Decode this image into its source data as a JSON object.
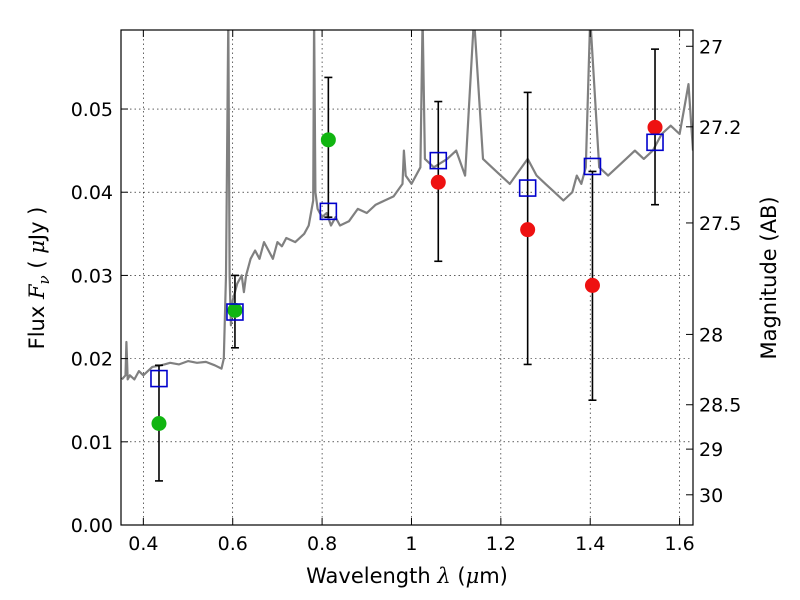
{
  "chart_data": {
    "type": "scatter",
    "xlabel": "Wavelength",
    "xlabel_symbol": "λ",
    "xlabel_unit_open": " (",
    "xlabel_unit_mu": "μ",
    "xlabel_unit_rest": "m)",
    "ylabel": "Flux",
    "ylabel_symbol": "F",
    "ylabel_sub": "ν",
    "ylabel_unit_open": "( ",
    "ylabel_unit_mu": "μ",
    "ylabel_unit_rest": "Jy )",
    "y2label": "Magnitude (AB)",
    "xlim": [
      0.35,
      1.63
    ],
    "ylim": [
      0,
      0.0595
    ],
    "grid": true,
    "x_ticks": [
      0.4,
      0.6,
      0.8,
      1.0,
      1.2,
      1.4,
      1.6
    ],
    "x_tick_labels": [
      "0.4",
      "0.6",
      "0.8",
      "1",
      "1.2",
      "1.4",
      "1.6"
    ],
    "y_ticks": [
      0.0,
      0.01,
      0.02,
      0.03,
      0.04,
      0.05
    ],
    "y_tick_labels": [
      "0.00",
      "0.01",
      "0.02",
      "0.03",
      "0.04",
      "0.05"
    ],
    "y2_ticks": [
      {
        "label": "27",
        "value": 27.0
      },
      {
        "label": "27.2",
        "value": 27.2
      },
      {
        "label": "27.5",
        "value": 27.5
      },
      {
        "label": "28",
        "value": 28.0
      },
      {
        "label": "28.5",
        "value": 28.5
      },
      {
        "label": "29",
        "value": 29.0
      },
      {
        "label": "30",
        "value": 30.0
      }
    ],
    "colors": {
      "model": "#808080",
      "observed_optical": "#11b511",
      "observed_nir": "#ee1111",
      "model_flux": "#0000cc",
      "errorbar": "#000000"
    },
    "model_spectrum": {
      "x": [
        0.352,
        0.36,
        0.362,
        0.365,
        0.37,
        0.38,
        0.39,
        0.4,
        0.42,
        0.44,
        0.46,
        0.48,
        0.5,
        0.52,
        0.54,
        0.56,
        0.575,
        0.58,
        0.585,
        0.59,
        0.593,
        0.596,
        0.6,
        0.61,
        0.62,
        0.625,
        0.63,
        0.64,
        0.65,
        0.66,
        0.67,
        0.68,
        0.69,
        0.7,
        0.71,
        0.72,
        0.74,
        0.76,
        0.77,
        0.78,
        0.782,
        0.785,
        0.79,
        0.8,
        0.81,
        0.82,
        0.83,
        0.84,
        0.86,
        0.88,
        0.9,
        0.92,
        0.94,
        0.96,
        0.98,
        0.983,
        0.987,
        1.0,
        1.02,
        1.025,
        1.03,
        1.05,
        1.08,
        1.1,
        1.12,
        1.14,
        1.16,
        1.18,
        1.2,
        1.22,
        1.24,
        1.26,
        1.28,
        1.3,
        1.32,
        1.34,
        1.36,
        1.37,
        1.38,
        1.39,
        1.4,
        1.42,
        1.44,
        1.46,
        1.48,
        1.5,
        1.52,
        1.54,
        1.56,
        1.58,
        1.6,
        1.61,
        1.62,
        1.63
      ],
      "y": [
        0.0175,
        0.018,
        0.022,
        0.0175,
        0.018,
        0.0175,
        0.0185,
        0.018,
        0.019,
        0.0192,
        0.0195,
        0.0193,
        0.0197,
        0.0195,
        0.0196,
        0.0192,
        0.0188,
        0.02,
        0.03,
        0.061,
        0.03,
        0.024,
        0.027,
        0.029,
        0.03,
        0.028,
        0.03,
        0.032,
        0.033,
        0.032,
        0.034,
        0.033,
        0.032,
        0.034,
        0.0335,
        0.0345,
        0.034,
        0.035,
        0.036,
        0.039,
        0.061,
        0.04,
        0.038,
        0.037,
        0.0375,
        0.036,
        0.037,
        0.036,
        0.0365,
        0.038,
        0.0375,
        0.0385,
        0.039,
        0.0395,
        0.041,
        0.045,
        0.042,
        0.041,
        0.043,
        0.061,
        0.044,
        0.043,
        0.044,
        0.045,
        0.042,
        0.061,
        0.044,
        0.043,
        0.042,
        0.041,
        0.0425,
        0.044,
        0.042,
        0.041,
        0.04,
        0.039,
        0.04,
        0.042,
        0.041,
        0.043,
        0.061,
        0.043,
        0.042,
        0.043,
        0.044,
        0.045,
        0.044,
        0.045,
        0.047,
        0.048,
        0.047,
        0.05,
        0.053,
        0.045
      ]
    },
    "observed_optical": [
      {
        "x": 0.435,
        "y": 0.0122,
        "yerr_low": 0.0053,
        "yerr_high": 0.0192
      },
      {
        "x": 0.605,
        "y": 0.0258,
        "yerr_low": 0.0213,
        "yerr_high": 0.03
      },
      {
        "x": 0.814,
        "y": 0.0463,
        "yerr_low": 0.037,
        "yerr_high": 0.0538
      }
    ],
    "observed_nir": [
      {
        "x": 1.06,
        "y": 0.0412,
        "yerr_low": 0.0317,
        "yerr_high": 0.0509
      },
      {
        "x": 1.26,
        "y": 0.0355,
        "yerr_low": 0.0193,
        "yerr_high": 0.052
      },
      {
        "x": 1.405,
        "y": 0.0288,
        "yerr_low": 0.015,
        "yerr_high": 0.0425
      },
      {
        "x": 1.545,
        "y": 0.0478,
        "yerr_low": 0.0385,
        "yerr_high": 0.0572
      }
    ],
    "model_flux": [
      {
        "x": 0.435,
        "y": 0.0176
      },
      {
        "x": 0.605,
        "y": 0.0256
      },
      {
        "x": 0.814,
        "y": 0.0377
      },
      {
        "x": 1.06,
        "y": 0.0438
      },
      {
        "x": 1.26,
        "y": 0.0405
      },
      {
        "x": 1.405,
        "y": 0.0431
      },
      {
        "x": 1.545,
        "y": 0.046
      }
    ]
  }
}
